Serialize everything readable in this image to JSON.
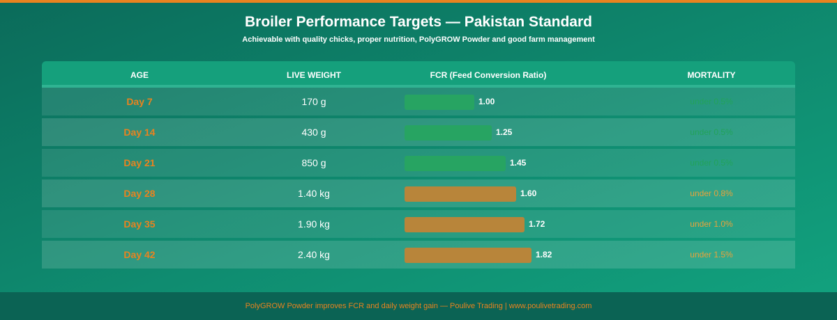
{
  "header": {
    "title": "Broiler Performance Targets — Pakistan Standard",
    "subtitle": "Achievable with quality chicks, proper nutrition, PolyGROW Powder and good farm management"
  },
  "table": {
    "columns": [
      "AGE",
      "LIVE WEIGHT",
      "FCR (Feed Conversion Ratio)",
      "MORTALITY"
    ],
    "rows": [
      {
        "age": "Day 7",
        "weight": "170 g",
        "fcr": 1.0,
        "fcr_label": "1.00",
        "mortality": "under 0.5%",
        "status": "good"
      },
      {
        "age": "Day 14",
        "weight": "430 g",
        "fcr": 1.25,
        "fcr_label": "1.25",
        "mortality": "under 0.5%",
        "status": "good"
      },
      {
        "age": "Day 21",
        "weight": "850 g",
        "fcr": 1.45,
        "fcr_label": "1.45",
        "mortality": "under 0.5%",
        "status": "good"
      },
      {
        "age": "Day 28",
        "weight": "1.40 kg",
        "fcr": 1.6,
        "fcr_label": "1.60",
        "mortality": "under 0.8%",
        "status": "warn"
      },
      {
        "age": "Day 35",
        "weight": "1.90 kg",
        "fcr": 1.72,
        "fcr_label": "1.72",
        "mortality": "under 1.0%",
        "status": "warn"
      },
      {
        "age": "Day 42",
        "weight": "2.40 kg",
        "fcr": 1.82,
        "fcr_label": "1.82",
        "mortality": "under 1.5%",
        "status": "warn"
      }
    ]
  },
  "colors": {
    "accent": "#e9831f",
    "good_bar": "#27a462",
    "warn_bar": "#b8853a",
    "good_text": "#22a35a",
    "warn_text": "#e9a23a"
  },
  "footer": {
    "text": "PolyGROW Powder improves FCR and daily weight gain — Poulive Trading | www.poulivetrading.com"
  }
}
